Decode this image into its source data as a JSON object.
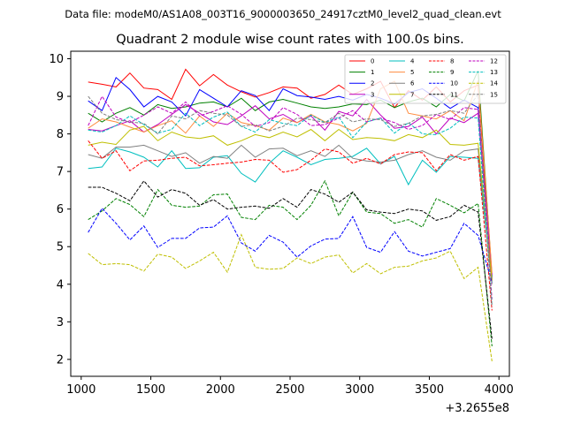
{
  "chart_data": {
    "type": "line",
    "suptitle": "Data file: modeM0/AS1A08_003T16_9000003650_24917cztM0_level2_quad_clean.evt",
    "title": "Quadrant 2 module wise count rates with 100.0s bins.",
    "xlabel": "",
    "ylabel": "",
    "x_offset_label": "+3.2655e8",
    "xlim": [
      925,
      4075
    ],
    "ylim": [
      1.55,
      10.2
    ],
    "xticks": [
      1000,
      1500,
      2000,
      2500,
      3000,
      3500,
      4000
    ],
    "yticks": [
      2,
      3,
      4,
      5,
      6,
      7,
      8,
      9,
      10
    ],
    "x": [
      1050,
      1150,
      1250,
      1350,
      1450,
      1550,
      1650,
      1750,
      1850,
      1950,
      2050,
      2150,
      2250,
      2350,
      2450,
      2550,
      2650,
      2750,
      2850,
      2950,
      3050,
      3150,
      3250,
      3350,
      3450,
      3550,
      3650,
      3750,
      3850,
      3950
    ],
    "legend_position": "top-right",
    "series": [
      {
        "name": "0",
        "color": "#ff0000",
        "dash": "solid",
        "values": [
          9.38,
          9.32,
          9.25,
          9.62,
          9.22,
          9.18,
          8.92,
          9.72,
          9.28,
          9.58,
          9.3,
          9.12,
          8.98,
          9.1,
          9.25,
          9.22,
          8.95,
          9.05,
          9.3,
          9.05,
          9.2,
          9.4,
          8.7,
          9.15,
          8.9,
          9.25,
          8.85,
          9.15,
          9.3,
          4.1
        ]
      },
      {
        "name": "1",
        "color": "#008000",
        "dash": "solid",
        "values": [
          8.55,
          8.32,
          8.55,
          8.7,
          8.5,
          8.78,
          8.68,
          8.72,
          8.82,
          8.85,
          8.72,
          8.95,
          8.62,
          8.85,
          8.92,
          8.82,
          8.72,
          8.68,
          8.72,
          8.8,
          8.78,
          8.9,
          8.7,
          8.85,
          8.95,
          8.72,
          9.05,
          8.88,
          9.68,
          4.2
        ]
      },
      {
        "name": "2",
        "color": "#0000ff",
        "dash": "solid",
        "values": [
          8.88,
          8.62,
          9.5,
          9.18,
          8.72,
          9.0,
          8.85,
          8.48,
          9.18,
          8.95,
          8.72,
          9.15,
          9.02,
          8.62,
          9.2,
          9.02,
          8.98,
          8.92,
          9.0,
          8.9,
          9.05,
          8.95,
          8.8,
          9.1,
          9.2,
          8.95,
          8.68,
          8.9,
          8.7,
          4.15
        ]
      },
      {
        "name": "3",
        "color": "#bf00bf",
        "dash": "solid",
        "values": [
          8.12,
          8.08,
          8.22,
          8.35,
          8.05,
          8.25,
          8.52,
          8.78,
          8.55,
          8.32,
          8.25,
          8.48,
          8.75,
          8.4,
          8.52,
          8.3,
          8.48,
          8.1,
          8.6,
          8.48,
          8.92,
          8.5,
          8.15,
          8.2,
          8.45,
          8.0,
          8.42,
          8.3,
          8.55,
          4.25
        ]
      },
      {
        "name": "4",
        "color": "#00bfbf",
        "dash": "solid",
        "values": [
          7.08,
          7.12,
          7.62,
          7.52,
          7.38,
          7.12,
          7.55,
          7.08,
          7.1,
          7.38,
          7.42,
          6.95,
          6.72,
          7.22,
          7.55,
          7.38,
          7.18,
          7.32,
          7.35,
          7.4,
          7.62,
          7.2,
          7.4,
          6.65,
          7.3,
          6.98,
          7.4,
          7.38,
          7.35,
          4.05
        ]
      },
      {
        "name": "5",
        "color": "#ff8c3f",
        "dash": "solid",
        "values": [
          8.15,
          8.4,
          8.32,
          8.18,
          8.05,
          8.22,
          8.35,
          8.02,
          8.48,
          8.2,
          8.55,
          8.3,
          8.22,
          8.1,
          8.42,
          8.3,
          8.52,
          8.32,
          8.25,
          8.08,
          8.28,
          9.2,
          9.4,
          8.55,
          8.48,
          8.4,
          8.62,
          8.35,
          9.42,
          4.3
        ]
      },
      {
        "name": "6",
        "color": "#808080",
        "dash": "solid",
        "values": [
          7.45,
          7.35,
          7.65,
          7.65,
          7.7,
          7.55,
          7.4,
          7.5,
          7.22,
          7.4,
          7.35,
          7.7,
          7.38,
          7.6,
          7.62,
          7.42,
          7.55,
          7.4,
          7.7,
          7.35,
          7.28,
          7.25,
          7.3,
          7.45,
          7.55,
          7.38,
          7.3,
          7.55,
          7.6,
          4.0
        ]
      },
      {
        "name": "7",
        "color": "#bfbf00",
        "dash": "solid",
        "values": [
          7.7,
          7.78,
          7.72,
          8.1,
          8.2,
          7.82,
          8.05,
          7.92,
          7.88,
          7.95,
          7.7,
          7.82,
          7.98,
          7.9,
          8.05,
          7.92,
          8.12,
          7.82,
          8.12,
          7.85,
          7.9,
          7.88,
          7.82,
          7.98,
          7.9,
          8.1,
          7.72,
          7.7,
          7.75,
          4.1
        ]
      },
      {
        "name": "8",
        "color": "#ff0000",
        "dash": "dashed",
        "values": [
          7.82,
          7.35,
          7.55,
          7.02,
          7.28,
          7.3,
          7.35,
          7.38,
          7.15,
          7.18,
          7.22,
          7.25,
          7.32,
          7.3,
          6.98,
          7.05,
          7.3,
          7.6,
          7.52,
          7.22,
          7.35,
          7.2,
          7.45,
          7.52,
          7.5,
          7.02,
          7.45,
          7.3,
          7.4,
          3.3
        ]
      },
      {
        "name": "9",
        "color": "#008000",
        "dash": "dashed",
        "values": [
          5.72,
          5.95,
          6.28,
          6.12,
          5.8,
          6.52,
          6.1,
          6.05,
          6.08,
          6.38,
          6.4,
          5.78,
          5.72,
          6.1,
          6.05,
          5.72,
          6.1,
          6.75,
          5.82,
          6.45,
          5.92,
          5.88,
          5.62,
          5.72,
          5.52,
          6.28,
          6.1,
          5.9,
          6.15,
          2.35
        ]
      },
      {
        "name": "10",
        "color": "#0000ff",
        "dash": "dashed",
        "values": [
          5.38,
          6.02,
          5.62,
          5.18,
          5.55,
          4.98,
          5.22,
          5.22,
          5.5,
          5.52,
          5.82,
          5.1,
          4.88,
          5.3,
          5.12,
          4.72,
          5.02,
          5.2,
          5.22,
          5.8,
          4.98,
          4.85,
          5.4,
          4.88,
          4.75,
          4.85,
          4.95,
          5.62,
          5.3,
          4.05
        ]
      },
      {
        "name": "11",
        "color": "#000000",
        "dash": "dashed",
        "values": [
          6.58,
          6.58,
          6.42,
          6.22,
          6.75,
          6.32,
          6.52,
          6.42,
          6.1,
          6.25,
          6.0,
          6.05,
          6.08,
          6.02,
          6.28,
          6.05,
          6.52,
          6.4,
          6.18,
          6.45,
          5.98,
          5.92,
          5.88,
          6.0,
          5.95,
          5.7,
          5.8,
          6.1,
          5.92,
          2.55
        ]
      },
      {
        "name": "12",
        "color": "#bf00bf",
        "dash": "dashed",
        "values": [
          8.22,
          9.0,
          8.45,
          8.3,
          8.5,
          8.72,
          8.55,
          8.85,
          8.48,
          8.6,
          8.75,
          8.52,
          8.2,
          8.3,
          8.7,
          8.52,
          8.22,
          8.25,
          8.42,
          8.62,
          8.32,
          8.42,
          8.3,
          8.12,
          8.22,
          8.52,
          8.38,
          8.7,
          8.65,
          3.6
        ]
      },
      {
        "name": "13",
        "color": "#00bfbf",
        "dash": "dashed",
        "values": [
          8.1,
          8.05,
          8.22,
          8.48,
          8.25,
          8.02,
          8.12,
          8.55,
          8.22,
          8.45,
          8.58,
          8.2,
          8.05,
          8.38,
          8.28,
          8.22,
          8.5,
          8.3,
          8.45,
          7.9,
          8.32,
          8.42,
          8.02,
          8.3,
          8.0,
          7.98,
          8.15,
          8.45,
          8.42,
          3.45
        ]
      },
      {
        "name": "14",
        "color": "#bfbf00",
        "dash": "dashed",
        "values": [
          4.82,
          4.52,
          4.55,
          4.52,
          4.35,
          4.8,
          4.72,
          4.42,
          4.62,
          4.85,
          4.32,
          5.32,
          4.45,
          4.4,
          4.42,
          4.7,
          4.55,
          4.72,
          4.78,
          4.3,
          4.55,
          4.28,
          4.45,
          4.48,
          4.62,
          4.7,
          4.88,
          4.15,
          4.45,
          1.95
        ]
      },
      {
        "name": "15",
        "color": "#808080",
        "dash": "dashed",
        "values": [
          9.0,
          8.55,
          8.38,
          8.32,
          8.28,
          8.0,
          8.48,
          8.4,
          8.62,
          8.55,
          8.5,
          8.2,
          8.25,
          8.08,
          8.2,
          8.42,
          8.38,
          8.3,
          8.55,
          8.32,
          8.4,
          8.38,
          8.2,
          8.28,
          8.48,
          8.52,
          8.62,
          8.55,
          9.05,
          3.4
        ]
      }
    ]
  }
}
